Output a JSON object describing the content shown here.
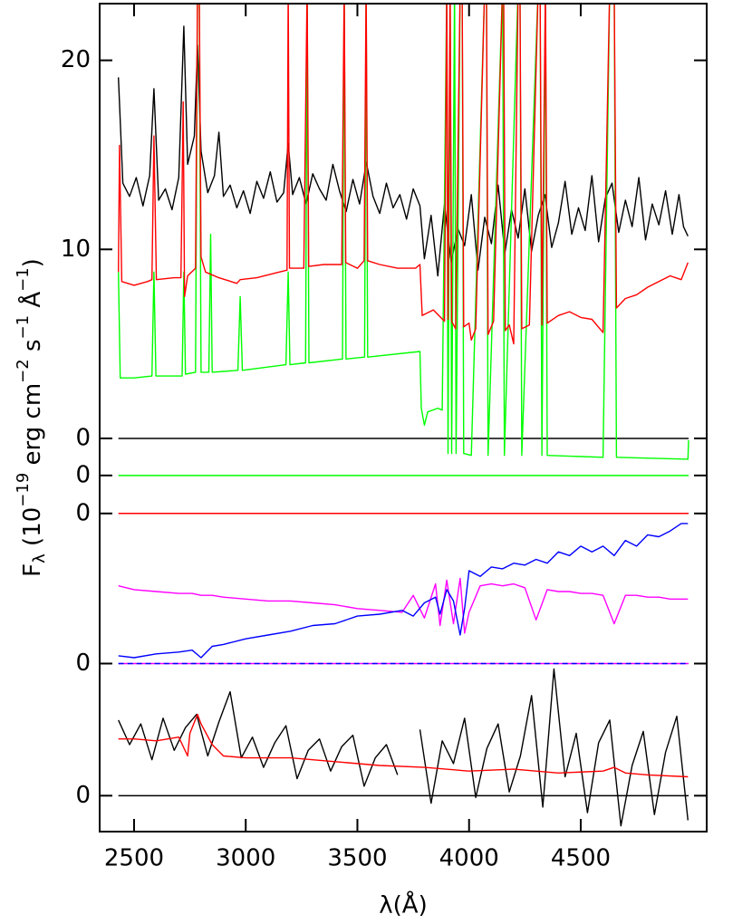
{
  "chart_data": {
    "type": "line",
    "x_label": "λ(Å)",
    "y_label": [
      "F",
      "λ",
      " (10",
      "−19",
      " erg cm",
      "−2",
      " s",
      "−1",
      " Å",
      "−1",
      ")"
    ],
    "xlim": [
      2346,
      5064
    ],
    "xticks": [
      2500,
      3000,
      3500,
      4000,
      4500
    ],
    "ylim": [
      -20.8,
      23
    ],
    "yticks": [
      {
        "value": -18.9,
        "label": "0"
      },
      {
        "value": -11.91,
        "label": "0"
      },
      {
        "value": -3.97,
        "label": "0"
      },
      {
        "value": -1.96,
        "label": "0"
      },
      0,
      10,
      20
    ],
    "reference_lines": [
      {
        "value": 0,
        "color": "#000000"
      },
      {
        "value": -1.96,
        "color": "#00ff00"
      },
      {
        "value": -3.97,
        "color": "#ff0000"
      },
      {
        "value": -11.91,
        "color": "#ff00ff"
      },
      {
        "value": -11.91,
        "color": "#0000ff",
        "dashed": true
      },
      {
        "value": -18.9,
        "color": "#000000"
      }
    ],
    "series": [
      {
        "color": "#000000",
        "x": [
          2430,
          2450,
          2480,
          2510,
          2540,
          2570,
          2589,
          2610,
          2640,
          2670,
          2700,
          2723,
          2740,
          2770,
          2784,
          2800,
          2830,
          2860,
          2880,
          2900,
          2930,
          2960,
          2990,
          3020,
          3050,
          3080,
          3110,
          3140,
          3170,
          3190,
          3210,
          3240,
          3270,
          3300,
          3330,
          3360,
          3390,
          3420,
          3450,
          3480,
          3510,
          3540,
          3570,
          3600,
          3630,
          3660,
          3690,
          3720,
          3750,
          3780,
          3800,
          3830,
          3860,
          3890,
          3920,
          3950,
          3980,
          4010,
          4040,
          4070,
          4100,
          4130,
          4160,
          4190,
          4220,
          4250,
          4280,
          4310,
          4340,
          4370,
          4400,
          4430,
          4460,
          4490,
          4520,
          4550,
          4580,
          4610,
          4640,
          4670,
          4700,
          4730,
          4760,
          4790,
          4820,
          4850,
          4880,
          4910,
          4940,
          4960,
          4980
        ],
        "values": [
          19.1,
          13.5,
          12.8,
          13.8,
          12.3,
          13.9,
          18.5,
          12.6,
          13.2,
          12.1,
          13.8,
          21.8,
          14.5,
          16.0,
          20.8,
          15.2,
          13.0,
          13.9,
          16.2,
          12.8,
          13.4,
          12.2,
          13.1,
          11.9,
          13.6,
          12.7,
          14.1,
          12.5,
          13.0,
          15.6,
          12.9,
          13.8,
          12.4,
          14.0,
          13.2,
          12.6,
          14.5,
          13.1,
          12.0,
          13.7,
          12.4,
          14.6,
          12.8,
          11.9,
          13.5,
          12.2,
          12.9,
          11.6,
          13.2,
          12.3,
          9.5,
          11.8,
          8.6,
          12.4,
          9.3,
          11.1,
          10.2,
          12.9,
          8.9,
          11.7,
          10.3,
          13.4,
          9.8,
          12.1,
          10.6,
          13.2,
          9.9,
          11.8,
          12.9,
          10.1,
          11.4,
          13.6,
          10.8,
          12.2,
          11.0,
          13.9,
          10.4,
          12.7,
          13.5,
          10.9,
          12.6,
          11.2,
          13.8,
          10.5,
          12.4,
          11.3,
          13.1,
          10.8,
          12.9,
          11.2,
          10.7
        ]
      },
      {
        "color": "#00ff00",
        "x": [
          2430,
          2438,
          2500,
          2580,
          2589,
          2598,
          2715,
          2723,
          2730,
          2775,
          2784,
          2792,
          2800,
          2835,
          2843,
          2850,
          2965,
          2975,
          2985,
          3180,
          3190,
          3198,
          3268,
          3275,
          3283,
          3433,
          3441,
          3449,
          3532,
          3539,
          3546,
          3780,
          3786,
          3800,
          3815,
          3860,
          3880,
          3900,
          3906,
          3915,
          3922,
          3935,
          3942,
          3960,
          3969,
          3976,
          4010,
          4070,
          4078,
          4085,
          4150,
          4158,
          4220,
          4228,
          4236,
          4310,
          4318,
          4326,
          4342,
          4350,
          4600,
          4630,
          4642,
          4650,
          4660,
          4980,
          4983
        ],
        "values": [
          8.8,
          3.2,
          3.2,
          3.3,
          8.8,
          3.3,
          3.3,
          8.8,
          3.4,
          3.5,
          24,
          24,
          3.5,
          3.5,
          10.8,
          3.5,
          3.6,
          7.5,
          3.6,
          3.9,
          8.8,
          3.9,
          4.0,
          24,
          4.0,
          4.2,
          24,
          4.2,
          4.3,
          24,
          4.3,
          4.6,
          1.6,
          0.7,
          1.4,
          1.6,
          1.5,
          24,
          -0.8,
          24,
          -0.8,
          24,
          -0.8,
          24,
          24,
          -0.8,
          -0.9,
          24,
          24,
          -0.9,
          24,
          -0.9,
          24,
          24,
          -0.9,
          24,
          24,
          -0.9,
          24,
          -0.9,
          -1.0,
          24,
          24,
          24,
          -1.0,
          -1.1,
          -0.1
        ]
      },
      {
        "color": "#ff0000",
        "x": [
          2430,
          2435,
          2445,
          2500,
          2560,
          2580,
          2589,
          2600,
          2680,
          2710,
          2720,
          2726,
          2740,
          2775,
          2784,
          2792,
          2800,
          2820,
          2880,
          2960,
          2975,
          3050,
          3150,
          3185,
          3190,
          3196,
          3260,
          3275,
          3282,
          3350,
          3430,
          3441,
          3448,
          3500,
          3530,
          3539,
          3546,
          3600,
          3680,
          3760,
          3780,
          3790,
          3840,
          3890,
          3900,
          3906,
          3915,
          3922,
          3940,
          3960,
          3969,
          3976,
          4000,
          4010,
          4030,
          4070,
          4078,
          4085,
          4110,
          4150,
          4155,
          4162,
          4180,
          4200,
          4220,
          4228,
          4236,
          4270,
          4310,
          4318,
          4326,
          4342,
          4350,
          4400,
          4450,
          4500,
          4550,
          4600,
          4630,
          4642,
          4650,
          4660,
          4700,
          4750,
          4800,
          4850,
          4900,
          4950,
          4980
        ],
        "values": [
          8.8,
          15.5,
          8.3,
          8.1,
          8.3,
          8.4,
          16.0,
          8.4,
          8.5,
          8.5,
          17.8,
          7.5,
          8.6,
          9.0,
          24,
          24,
          9.6,
          8.8,
          8.5,
          8.2,
          8.4,
          8.5,
          8.8,
          8.9,
          24,
          9.0,
          9.0,
          24,
          9.1,
          9.2,
          9.2,
          24,
          9.3,
          9.0,
          9.4,
          24,
          9.4,
          9.2,
          9.0,
          9.0,
          9.2,
          6.5,
          6.8,
          6.2,
          24,
          6.3,
          24,
          6.2,
          5.8,
          24,
          24,
          5.9,
          6.1,
          5.2,
          5.8,
          24,
          24,
          5.5,
          6.2,
          24,
          24,
          5.7,
          6.0,
          5.0,
          24,
          24,
          5.8,
          6.0,
          24,
          24,
          6.0,
          24,
          6.1,
          6.5,
          6.7,
          6.4,
          6.3,
          5.6,
          24,
          24,
          24,
          6.9,
          7.4,
          7.6,
          8.0,
          8.3,
          8.6,
          8.4,
          9.3
        ]
      },
      {
        "color": "#ff00ff",
        "x": [
          2430,
          2500,
          2600,
          2700,
          2760,
          2800,
          2850,
          2900,
          3000,
          3100,
          3200,
          3300,
          3400,
          3500,
          3600,
          3700,
          3750,
          3800,
          3850,
          3870,
          3900,
          3930,
          3960,
          3980,
          4000,
          4050,
          4100,
          4150,
          4200,
          4250,
          4300,
          4350,
          4400,
          4450,
          4500,
          4550,
          4600,
          4650,
          4700,
          4750,
          4800,
          4850,
          4900,
          4950,
          4980
        ],
        "values": [
          -7.8,
          -8.0,
          -8.1,
          -8.2,
          -8.2,
          -8.3,
          -8.3,
          -8.4,
          -8.5,
          -8.6,
          -8.6,
          -8.7,
          -8.8,
          -9.0,
          -9.1,
          -9.2,
          -8.3,
          -9.5,
          -7.7,
          -9.9,
          -7.5,
          -9.8,
          -7.4,
          -10.3,
          -9.2,
          -7.8,
          -7.7,
          -7.8,
          -7.7,
          -7.9,
          -9.6,
          -8.0,
          -8.1,
          -8.1,
          -8.2,
          -8.2,
          -8.3,
          -9.8,
          -8.3,
          -8.3,
          -8.4,
          -8.4,
          -8.5,
          -8.5,
          -8.5
        ]
      },
      {
        "color": "#0000ff",
        "x": [
          2430,
          2500,
          2600,
          2700,
          2760,
          2800,
          2850,
          2900,
          3000,
          3100,
          3200,
          3300,
          3400,
          3500,
          3600,
          3700,
          3750,
          3800,
          3850,
          3870,
          3900,
          3930,
          3960,
          3980,
          4000,
          4050,
          4100,
          4150,
          4200,
          4250,
          4300,
          4350,
          4400,
          4450,
          4500,
          4550,
          4600,
          4650,
          4700,
          4750,
          4800,
          4850,
          4900,
          4950,
          4980
        ],
        "values": [
          -11.5,
          -11.6,
          -11.4,
          -11.3,
          -11.2,
          -11.6,
          -11.0,
          -10.9,
          -10.6,
          -10.4,
          -10.2,
          -9.9,
          -9.8,
          -9.4,
          -9.3,
          -9.1,
          -9.4,
          -8.7,
          -8.4,
          -9.3,
          -8.0,
          -8.6,
          -10.4,
          -9.0,
          -7.0,
          -7.3,
          -6.8,
          -6.9,
          -6.6,
          -6.7,
          -6.4,
          -6.6,
          -6.0,
          -6.2,
          -5.7,
          -6.0,
          -5.7,
          -6.2,
          -5.4,
          -5.7,
          -5.1,
          -5.2,
          -4.9,
          -4.5,
          -4.5
        ]
      },
      {
        "color": "#000000",
        "x": [
          2430,
          2480,
          2530,
          2580,
          2630,
          2680,
          2730,
          2780,
          2830,
          2880,
          2930,
          2980,
          3030,
          3080,
          3130,
          3180,
          3230,
          3280,
          3330,
          3380,
          3430,
          3480,
          3530,
          3580,
          3630,
          3680,
          3730,
          3780,
          3830,
          3880,
          3930,
          3980,
          4030,
          4080,
          4130,
          4180,
          4230,
          4280,
          4330,
          4380,
          4430,
          4480,
          4530,
          4580,
          4630,
          4680,
          4730,
          4780,
          4830,
          4880,
          4930,
          4980
        ],
        "values": [
          -14.9,
          -16.2,
          -15.1,
          -17.0,
          -14.8,
          -16.5,
          -15.3,
          -14.6,
          -16.8,
          -15.0,
          -13.4,
          -16.9,
          -15.8,
          -17.4,
          -16.1,
          -15.2,
          -18.0,
          -16.5,
          -15.9,
          -17.6,
          -16.3,
          -15.7,
          -18.4,
          -16.9,
          -16.2,
          -17.8,
          null,
          -15.4,
          -19.3,
          -16.0,
          -17.2,
          -14.8,
          -19.0,
          -16.4,
          -15.1,
          -18.7,
          -16.8,
          -13.6,
          -19.5,
          -12.2,
          -17.9,
          -15.6,
          -19.8,
          -16.1,
          -14.9,
          -20.5,
          -17.3,
          -15.5,
          -19.9,
          -16.6,
          -14.7,
          -20.2
        ]
      },
      {
        "color": "#ff0000",
        "x": [
          2430,
          2500,
          2600,
          2700,
          2740,
          2750,
          2760,
          2784,
          2800,
          2850,
          2900,
          3000,
          3200,
          3400,
          3600,
          3800,
          4000,
          4200,
          4400,
          4600,
          4650,
          4700,
          4800,
          4980
        ],
        "values": [
          -15.9,
          -15.9,
          -16.0,
          -15.8,
          -16.8,
          -15.6,
          -15.3,
          -14.6,
          -15.1,
          -16.2,
          -16.8,
          -16.9,
          -16.9,
          -17.1,
          -17.3,
          -17.4,
          -17.6,
          -17.5,
          -17.7,
          -17.6,
          -17.4,
          -17.7,
          -17.8,
          -17.9
        ]
      }
    ]
  }
}
